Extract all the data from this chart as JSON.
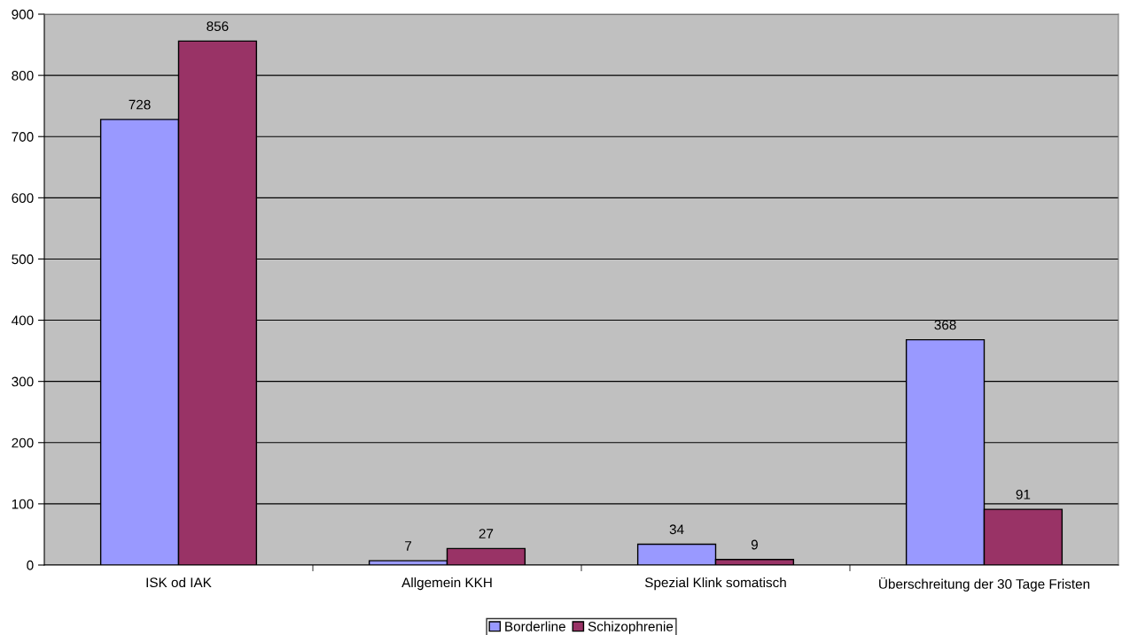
{
  "chart_data": {
    "type": "bar",
    "categories": [
      "ISK od IAK",
      "Allgemein KKH",
      "Spezial Klink somatisch",
      "Überschreitung der 30 Tage Fristen"
    ],
    "series": [
      {
        "name": "Borderline",
        "color": "#9999ff",
        "values": [
          728,
          7,
          34,
          368
        ]
      },
      {
        "name": "Schizophrenie",
        "color": "#993366",
        "values": [
          856,
          27,
          9,
          91
        ]
      }
    ],
    "ylim": [
      0,
      900
    ],
    "yticks": [
      0,
      100,
      200,
      300,
      400,
      500,
      600,
      700,
      800,
      900
    ],
    "grid": "y",
    "legend": "bottom",
    "data_labels": true
  }
}
